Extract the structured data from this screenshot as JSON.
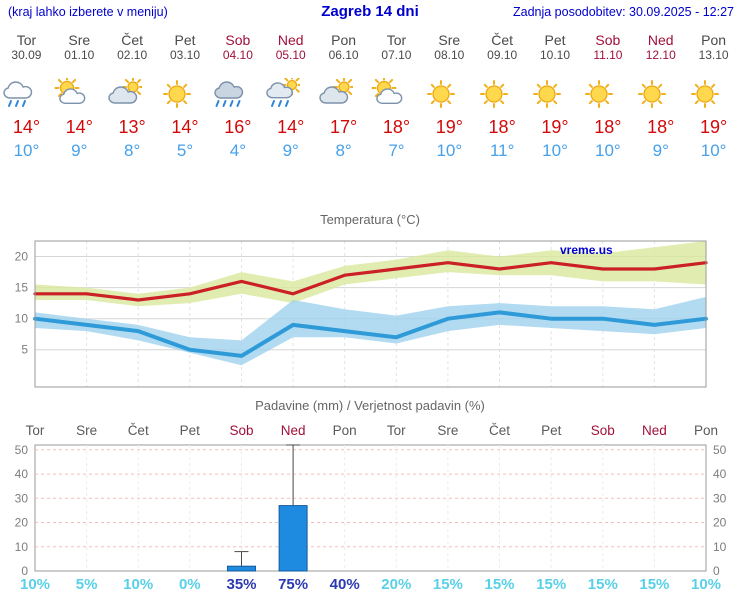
{
  "header": {
    "left_note": "(kraj lahko izberete v meniju)",
    "title": "Zagreb 14 dni",
    "updated": "Zadnja posodobitev: 30.09.2025 - 12:27"
  },
  "colors": {
    "link_blue": "#0000cd",
    "tmax_red": "#d40808",
    "tmin_blue": "#46a0ea",
    "weekend_red": "#a1103a",
    "weekday_gray": "#5a5a5a",
    "prob_low_cyan": "#58d0e8",
    "prob_high_blue": "#2c3ab2",
    "bar_blue": "#1e8be0"
  },
  "days": [
    {
      "name": "Tor",
      "date": "30.09",
      "icon": "rain",
      "tmax": "14°",
      "tmin": "10°",
      "weekend": false
    },
    {
      "name": "Sre",
      "date": "01.10",
      "icon": "partly-cloudy",
      "tmax": "14°",
      "tmin": "9°",
      "weekend": false
    },
    {
      "name": "Čet",
      "date": "02.10",
      "icon": "mostly-cloudy",
      "tmax": "13°",
      "tmin": "8°",
      "weekend": false
    },
    {
      "name": "Pet",
      "date": "03.10",
      "icon": "sunny",
      "tmax": "14°",
      "tmin": "5°",
      "weekend": false
    },
    {
      "name": "Sob",
      "date": "04.10",
      "icon": "heavy-rain",
      "tmax": "16°",
      "tmin": "4°",
      "weekend": true
    },
    {
      "name": "Ned",
      "date": "05.10",
      "icon": "rain-sun",
      "tmax": "14°",
      "tmin": "9°",
      "weekend": true
    },
    {
      "name": "Pon",
      "date": "06.10",
      "icon": "mostly-cloudy",
      "tmax": "17°",
      "tmin": "8°",
      "weekend": false
    },
    {
      "name": "Tor",
      "date": "07.10",
      "icon": "partly-cloudy",
      "tmax": "18°",
      "tmin": "7°",
      "weekend": false
    },
    {
      "name": "Sre",
      "date": "08.10",
      "icon": "sunny",
      "tmax": "19°",
      "tmin": "10°",
      "weekend": false
    },
    {
      "name": "Čet",
      "date": "09.10",
      "icon": "sunny",
      "tmax": "18°",
      "tmin": "11°",
      "weekend": false
    },
    {
      "name": "Pet",
      "date": "10.10",
      "icon": "sunny",
      "tmax": "19°",
      "tmin": "10°",
      "weekend": false
    },
    {
      "name": "Sob",
      "date": "11.10",
      "icon": "sunny",
      "tmax": "18°",
      "tmin": "10°",
      "weekend": true
    },
    {
      "name": "Ned",
      "date": "12.10",
      "icon": "sunny",
      "tmax": "18°",
      "tmin": "9°",
      "weekend": true
    },
    {
      "name": "Pon",
      "date": "13.10",
      "icon": "sunny",
      "tmax": "19°",
      "tmin": "10°",
      "weekend": false
    }
  ],
  "chart_data": [
    {
      "type": "line",
      "title": "Temperatura (°C)",
      "watermark": "vreme.us",
      "categories": [
        "Tor",
        "Sre",
        "Čet",
        "Pet",
        "Sob",
        "Ned",
        "Pon",
        "Tor",
        "Sre",
        "Čet",
        "Pet",
        "Sob",
        "Ned",
        "Pon"
      ],
      "yticks": [
        5,
        10,
        15,
        20
      ],
      "ylim": [
        -1,
        22.5
      ],
      "grid": true,
      "series": [
        {
          "name": "tmax",
          "color": "#cb2026",
          "width": 3.2,
          "values": [
            14,
            14,
            13,
            14,
            16,
            14,
            17,
            18,
            19,
            18,
            19,
            18,
            18,
            19
          ]
        },
        {
          "name": "tmin",
          "color": "#2f9ad8",
          "width": 4,
          "values": [
            10,
            9,
            8,
            5,
            4,
            9,
            8,
            7,
            10,
            11,
            10,
            10,
            9,
            10
          ]
        }
      ],
      "bands": [
        {
          "name": "tmax-range",
          "color": "#d9e89c",
          "upper": [
            15.5,
            15,
            14,
            15,
            17.5,
            16,
            18.5,
            19.5,
            21,
            20,
            21,
            20.5,
            21.5,
            22.5
          ],
          "lower": [
            13,
            13,
            12,
            12.5,
            14,
            12.5,
            15.5,
            16.5,
            17.5,
            17,
            17,
            16,
            16,
            15.5
          ]
        },
        {
          "name": "tmin-range",
          "color": "#9fd2ee",
          "upper": [
            11,
            10,
            9,
            7,
            6.5,
            13,
            11.5,
            10.5,
            12,
            12.5,
            12,
            12,
            11.5,
            13.5
          ],
          "lower": [
            8.5,
            8,
            6.5,
            4.5,
            2.5,
            7,
            7,
            6,
            8,
            9,
            8.5,
            8,
            7.5,
            8.5
          ]
        }
      ]
    },
    {
      "type": "bar",
      "title": "Padavine (mm) / Verjetnost padavin (%)",
      "categories": [
        "Tor",
        "Sre",
        "Čet",
        "Pet",
        "Sob",
        "Ned",
        "Pon",
        "Tor",
        "Sre",
        "Čet",
        "Pet",
        "Sob",
        "Ned",
        "Pon"
      ],
      "weekend": [
        4,
        5,
        11,
        12
      ],
      "values_mm": [
        0,
        0,
        0,
        0,
        2,
        27,
        0,
        0,
        0,
        0,
        0,
        0,
        0,
        0
      ],
      "whisker_max": [
        0,
        0,
        0,
        0,
        8,
        52,
        0,
        0,
        0,
        0,
        0,
        0,
        0,
        0
      ],
      "probabilities": [
        "10%",
        "5%",
        "10%",
        "0%",
        "35%",
        "75%",
        "40%",
        "20%",
        "15%",
        "15%",
        "15%",
        "15%",
        "15%",
        "10%"
      ],
      "prob_emphasis": [
        false,
        false,
        false,
        false,
        true,
        true,
        true,
        false,
        false,
        false,
        false,
        false,
        false,
        false
      ],
      "yticks": [
        0,
        10,
        20,
        30,
        40,
        50
      ],
      "ylim": [
        0,
        52
      ],
      "bar_color": "#1e8be0"
    }
  ]
}
